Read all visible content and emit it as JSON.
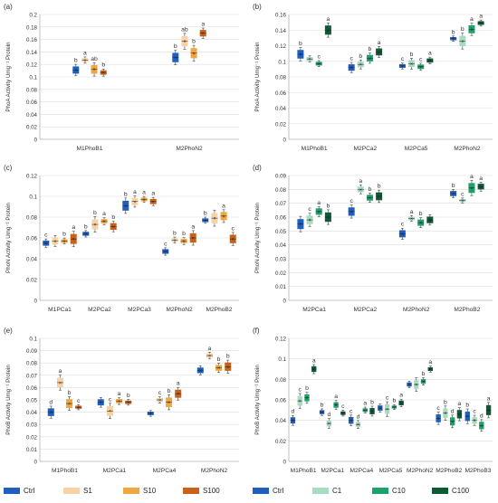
{
  "chart_data": [
    {
      "id": "a",
      "panel_label": "(a)",
      "type": "box",
      "ylabel": "PhoA Activity Umg⁻¹ Protein",
      "ylim": [
        0,
        0.2
      ],
      "yticks": [
        0,
        0.02,
        0.04,
        0.06,
        0.08,
        0.1,
        0.12,
        0.14,
        0.16,
        0.18,
        0.2
      ],
      "categories": [
        "M1PhoB1",
        "M2PhoN2"
      ],
      "palette": "orange",
      "series": [
        {
          "name": "Ctrl",
          "values": [
            0.111,
            0.131
          ],
          "letters": [
            "b",
            "b"
          ]
        },
        {
          "name": "S1",
          "values": [
            0.127,
            0.157
          ],
          "letters": [
            "a",
            "ab"
          ]
        },
        {
          "name": "S10",
          "values": [
            0.112,
            0.138
          ],
          "letters": [
            "ab",
            "b"
          ]
        },
        {
          "name": "S100",
          "values": [
            0.107,
            0.17
          ],
          "letters": [
            "b",
            "a"
          ]
        }
      ]
    },
    {
      "id": "b",
      "panel_label": "(b)",
      "type": "box",
      "ylabel": "PhoA Activity Umg⁻¹ Protein",
      "ylim": [
        0,
        0.16
      ],
      "yticks": [
        0,
        0.02,
        0.04,
        0.06,
        0.08,
        0.1,
        0.12,
        0.14,
        0.16
      ],
      "categories": [
        "M1PhoB1",
        "M2PCa2",
        "M2PCa5",
        "M2PhoN2"
      ],
      "palette": "green",
      "series": [
        {
          "name": "Ctrl",
          "values": [
            0.109,
            0.092,
            0.094,
            0.129
          ],
          "letters": [
            "b",
            "c",
            "c",
            "b"
          ]
        },
        {
          "name": "C1",
          "values": [
            0.103,
            0.096,
            0.097,
            0.126
          ],
          "letters": [
            "",
            "b",
            "b",
            "b"
          ]
        },
        {
          "name": "C10",
          "values": [
            0.097,
            0.104,
            0.093,
            0.141
          ],
          "letters": [
            "c",
            "b",
            "c",
            "a"
          ]
        },
        {
          "name": "C100",
          "values": [
            0.14,
            0.112,
            0.101,
            0.149
          ],
          "letters": [
            "a",
            "a",
            "a",
            "a"
          ]
        }
      ]
    },
    {
      "id": "c",
      "panel_label": "(c)",
      "type": "box",
      "ylabel": "PhoN Activity Umg⁻¹ Protein",
      "ylim": [
        0,
        0.12
      ],
      "yticks": [
        0,
        0.02,
        0.04,
        0.06,
        0.08,
        0.1,
        0.12
      ],
      "categories": [
        "M1PCa1",
        "M2PCa2",
        "M2PCa3",
        "M2PhoN2",
        "M2PhoB2"
      ],
      "palette": "orange",
      "series": [
        {
          "name": "Ctrl",
          "values": [
            0.055,
            0.064,
            0.091,
            0.047,
            0.077
          ],
          "letters": [
            "c",
            "b",
            "b",
            "c",
            "b"
          ]
        },
        {
          "name": "S1",
          "values": [
            0.057,
            0.073,
            0.095,
            0.058,
            0.079
          ],
          "letters": [
            "",
            "b",
            "a",
            "b",
            ""
          ]
        },
        {
          "name": "S10",
          "values": [
            0.057,
            0.076,
            0.097,
            0.057,
            0.081
          ],
          "letters": [
            "b",
            "a",
            "a",
            "b",
            "a"
          ]
        },
        {
          "name": "S100",
          "values": [
            0.059,
            0.071,
            0.095,
            0.06,
            0.059
          ],
          "letters": [
            "a",
            "b",
            "a",
            "a",
            "c"
          ]
        }
      ]
    },
    {
      "id": "d",
      "panel_label": "(d)",
      "type": "box",
      "ylabel": "PhoN Activity Umg⁻¹ Protein",
      "ylim": [
        0,
        0.09
      ],
      "yticks": [
        0,
        0.01,
        0.02,
        0.03,
        0.04,
        0.05,
        0.06,
        0.07,
        0.08,
        0.09
      ],
      "categories": [
        "M2PCa1",
        "M2PCa2",
        "M2PhoN2",
        "M2PhoB2"
      ],
      "palette": "green",
      "series": [
        {
          "name": "Ctrl",
          "values": [
            0.055,
            0.064,
            0.048,
            0.077
          ],
          "letters": [
            "",
            "c",
            "c",
            "b"
          ]
        },
        {
          "name": "C1",
          "values": [
            0.058,
            0.08,
            0.059,
            0.072
          ],
          "letters": [
            "c",
            "a",
            "a",
            "c"
          ]
        },
        {
          "name": "C10",
          "values": [
            0.064,
            0.074,
            0.056,
            0.081
          ],
          "letters": [
            "a",
            "b",
            "b",
            "a"
          ]
        },
        {
          "name": "C100",
          "values": [
            0.06,
            0.075,
            0.058,
            0.082
          ],
          "letters": [
            "b",
            "b",
            "",
            "a"
          ]
        }
      ]
    },
    {
      "id": "e",
      "panel_label": "(e)",
      "type": "box",
      "ylabel": "PhoB Activity Umg⁻¹ Protein",
      "ylim": [
        0,
        0.1
      ],
      "yticks": [
        0,
        0.01,
        0.02,
        0.03,
        0.04,
        0.05,
        0.06,
        0.07,
        0.08,
        0.09,
        0.1
      ],
      "categories": [
        "M1PhoB1",
        "M2PCa1",
        "M2PCa4",
        "M2PhoN2"
      ],
      "palette": "orange",
      "series": [
        {
          "name": "Ctrl",
          "values": [
            0.04,
            0.048,
            0.039,
            0.074
          ],
          "letters": [
            "d",
            "",
            "",
            ""
          ]
        },
        {
          "name": "S1",
          "values": [
            0.064,
            0.041,
            0.05,
            0.086
          ],
          "letters": [
            "a",
            "c",
            "c",
            "a"
          ]
        },
        {
          "name": "S10",
          "values": [
            0.047,
            0.049,
            0.048,
            0.076
          ],
          "letters": [
            "b",
            "a",
            "b",
            "b"
          ]
        },
        {
          "name": "S100",
          "values": [
            0.044,
            0.048,
            0.055,
            0.077
          ],
          "letters": [
            "c",
            "b",
            "a",
            "b"
          ]
        }
      ]
    },
    {
      "id": "f",
      "panel_label": "(f)",
      "type": "box",
      "ylabel": "PhoB Activity Umg⁻¹ Protein",
      "ylim": [
        0,
        0.12
      ],
      "yticks": [
        0,
        0.02,
        0.04,
        0.06,
        0.08,
        0.1,
        0.12
      ],
      "categories": [
        "M1PhoB1",
        "M2PCa1",
        "M2PCa4",
        "M2PCa5",
        "M2PhoN2",
        "M2PhoB2",
        "M2PhoB3"
      ],
      "palette": "green",
      "series": [
        {
          "name": "Ctrl",
          "values": [
            0.04,
            0.048,
            0.04,
            0.052,
            0.075,
            0.042,
            0.044
          ],
          "letters": [
            "d",
            "b",
            "c",
            "",
            "",
            "c",
            "b"
          ]
        },
        {
          "name": "C1",
          "values": [
            0.059,
            0.037,
            0.036,
            0.051,
            0.075,
            0.047,
            0.04
          ],
          "letters": [
            "c",
            "d",
            "d",
            "c",
            "",
            "b",
            "c"
          ]
        },
        {
          "name": "C10",
          "values": [
            0.062,
            0.055,
            0.05,
            0.053,
            0.078,
            0.039,
            0.035
          ],
          "letters": [
            "b",
            "a",
            "a",
            "b",
            "b",
            "d",
            "d"
          ]
        },
        {
          "name": "C100",
          "values": [
            0.09,
            0.047,
            0.049,
            0.057,
            0.09,
            0.046,
            0.05
          ],
          "letters": [
            "a",
            "c",
            "b",
            "a",
            "a",
            "a",
            "a"
          ]
        }
      ]
    }
  ],
  "colors": {
    "orange": {
      "Ctrl": "#1f5fbf",
      "S1": "#f7d2a5",
      "S10": "#f0a641",
      "S100": "#c8621b"
    },
    "green": {
      "Ctrl": "#1f5fbf",
      "C1": "#a8dcc0",
      "C10": "#1aa36b",
      "C100": "#0d5a37"
    },
    "grid": "#dddddd",
    "axis": "#999999",
    "text": "#333333"
  },
  "legends": {
    "left": [
      {
        "label": "Ctrl",
        "color": "#1f5fbf"
      },
      {
        "label": "S1",
        "color": "#f7d2a5"
      },
      {
        "label": "S10",
        "color": "#f0a641"
      },
      {
        "label": "S100",
        "color": "#c8621b"
      }
    ],
    "right": [
      {
        "label": "Ctrl",
        "color": "#1f5fbf"
      },
      {
        "label": "C1",
        "color": "#a8dcc0"
      },
      {
        "label": "C10",
        "color": "#1aa36b"
      },
      {
        "label": "C100",
        "color": "#0d5a37"
      }
    ]
  }
}
